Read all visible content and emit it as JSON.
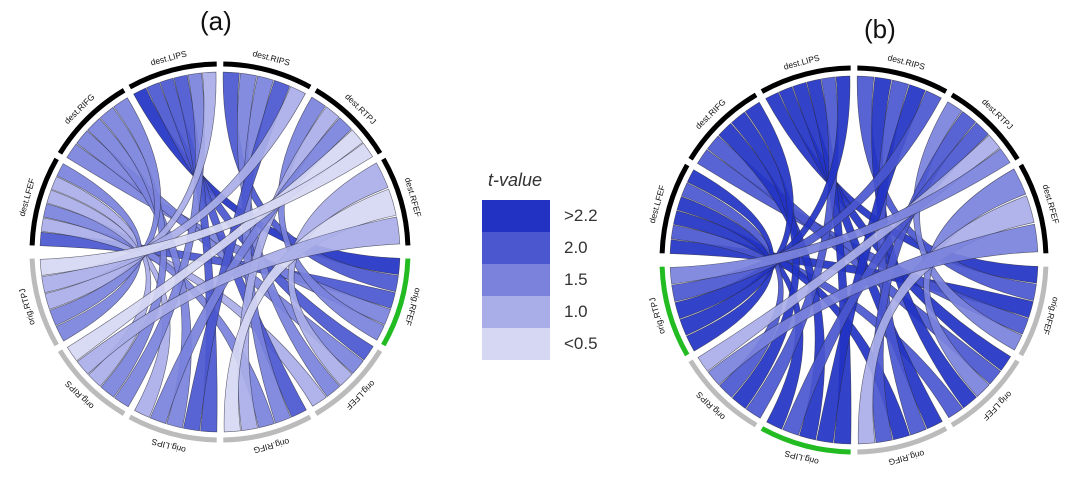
{
  "panels": [
    {
      "label": "(a)",
      "segments": [
        {
          "name": "dest.LFEF",
          "group": "dest"
        },
        {
          "name": "dest.RIFG",
          "group": "dest"
        },
        {
          "name": "dest.LIPS",
          "group": "dest"
        },
        {
          "name": "dest.RIPS",
          "group": "dest"
        },
        {
          "name": "dest.RTPJ",
          "group": "dest"
        },
        {
          "name": "dest.RFEF",
          "group": "dest"
        },
        {
          "name": "orig.RFEF",
          "group": "orig",
          "highlight": true
        },
        {
          "name": "orig.LFEF",
          "group": "orig"
        },
        {
          "name": "orig.RIFG",
          "group": "orig"
        },
        {
          "name": "orig.LIPS",
          "group": "orig"
        },
        {
          "name": "orig.RIPS",
          "group": "orig"
        },
        {
          "name": "orig.RTPJ",
          "group": "orig"
        }
      ],
      "chords": [
        {
          "from": 6,
          "to": 2,
          "level": 0
        },
        {
          "from": 6,
          "to": 3,
          "level": 1
        },
        {
          "from": 6,
          "to": 0,
          "level": 1
        },
        {
          "from": 6,
          "to": 1,
          "level": 2
        },
        {
          "from": 6,
          "to": 4,
          "level": 2
        },
        {
          "from": 7,
          "to": 2,
          "level": 1
        },
        {
          "from": 7,
          "to": 1,
          "level": 2
        },
        {
          "from": 7,
          "to": 5,
          "level": 3
        },
        {
          "from": 7,
          "to": 3,
          "level": 2
        },
        {
          "from": 7,
          "to": 0,
          "level": 3
        },
        {
          "from": 8,
          "to": 2,
          "level": 1
        },
        {
          "from": 8,
          "to": 3,
          "level": 2
        },
        {
          "from": 8,
          "to": 0,
          "level": 2
        },
        {
          "from": 8,
          "to": 4,
          "level": 3
        },
        {
          "from": 8,
          "to": 5,
          "level": 4
        },
        {
          "from": 9,
          "to": 2,
          "level": 1
        },
        {
          "from": 9,
          "to": 3,
          "level": 1
        },
        {
          "from": 9,
          "to": 1,
          "level": 2
        },
        {
          "from": 9,
          "to": 4,
          "level": 2
        },
        {
          "from": 9,
          "to": 0,
          "level": 3
        },
        {
          "from": 10,
          "to": 2,
          "level": 2
        },
        {
          "from": 10,
          "to": 1,
          "level": 2
        },
        {
          "from": 10,
          "to": 0,
          "level": 3
        },
        {
          "from": 10,
          "to": 5,
          "level": 3
        },
        {
          "from": 10,
          "to": 4,
          "level": 4
        },
        {
          "from": 11,
          "to": 0,
          "level": 2
        },
        {
          "from": 11,
          "to": 1,
          "level": 2
        },
        {
          "from": 11,
          "to": 2,
          "level": 3
        },
        {
          "from": 11,
          "to": 3,
          "level": 3
        },
        {
          "from": 11,
          "to": 4,
          "level": 4
        }
      ]
    },
    {
      "label": "(b)",
      "segments": [
        {
          "name": "dest.LFEF",
          "group": "dest"
        },
        {
          "name": "dest.RIFG",
          "group": "dest"
        },
        {
          "name": "dest.LIPS",
          "group": "dest"
        },
        {
          "name": "dest.RIPS",
          "group": "dest"
        },
        {
          "name": "dest.RTPJ",
          "group": "dest"
        },
        {
          "name": "dest.RFEF",
          "group": "dest"
        },
        {
          "name": "orig.RFEF",
          "group": "orig"
        },
        {
          "name": "orig.LFEF",
          "group": "orig"
        },
        {
          "name": "orig.RIFG",
          "group": "orig"
        },
        {
          "name": "orig.LIPS",
          "group": "orig",
          "highlight": true
        },
        {
          "name": "orig.RIPS",
          "group": "orig"
        },
        {
          "name": "orig.RTPJ",
          "group": "orig",
          "highlight": true
        }
      ],
      "chords": [
        {
          "from": 6,
          "to": 2,
          "level": 0
        },
        {
          "from": 6,
          "to": 3,
          "level": 1
        },
        {
          "from": 6,
          "to": 0,
          "level": 0
        },
        {
          "from": 6,
          "to": 1,
          "level": 1
        },
        {
          "from": 6,
          "to": 4,
          "level": 2
        },
        {
          "from": 7,
          "to": 2,
          "level": 0
        },
        {
          "from": 7,
          "to": 1,
          "level": 1
        },
        {
          "from": 7,
          "to": 5,
          "level": 2
        },
        {
          "from": 7,
          "to": 3,
          "level": 0
        },
        {
          "from": 7,
          "to": 0,
          "level": 1
        },
        {
          "from": 8,
          "to": 2,
          "level": 0
        },
        {
          "from": 8,
          "to": 3,
          "level": 1
        },
        {
          "from": 8,
          "to": 0,
          "level": 0
        },
        {
          "from": 8,
          "to": 4,
          "level": 1
        },
        {
          "from": 8,
          "to": 5,
          "level": 3
        },
        {
          "from": 9,
          "to": 2,
          "level": 0
        },
        {
          "from": 9,
          "to": 3,
          "level": 0
        },
        {
          "from": 9,
          "to": 1,
          "level": 0
        },
        {
          "from": 9,
          "to": 4,
          "level": 1
        },
        {
          "from": 9,
          "to": 0,
          "level": 0
        },
        {
          "from": 10,
          "to": 2,
          "level": 1
        },
        {
          "from": 10,
          "to": 1,
          "level": 0
        },
        {
          "from": 10,
          "to": 0,
          "level": 1
        },
        {
          "from": 10,
          "to": 5,
          "level": 2
        },
        {
          "from": 10,
          "to": 4,
          "level": 3
        },
        {
          "from": 11,
          "to": 0,
          "level": 0
        },
        {
          "from": 11,
          "to": 1,
          "level": 0
        },
        {
          "from": 11,
          "to": 2,
          "level": 0
        },
        {
          "from": 11,
          "to": 3,
          "level": 1
        },
        {
          "from": 11,
          "to": 4,
          "level": 2
        }
      ]
    }
  ],
  "legend": {
    "title": "t-value",
    "items": [
      {
        "label": ">2.2",
        "color": "#2233c4"
      },
      {
        "label": "2.0",
        "color": "#4a57cf"
      },
      {
        "label": "1.5",
        "color": "#7a82dc"
      },
      {
        "label": "1.0",
        "color": "#a9aee8"
      },
      {
        "label": "<0.5",
        "color": "#d6d7f3"
      }
    ]
  },
  "colors": {
    "dest_arc": "#000000",
    "orig_arc": "#bbbbbb",
    "highlight_arc": "#22bb22",
    "chord_stroke": "#2a2a3a"
  }
}
